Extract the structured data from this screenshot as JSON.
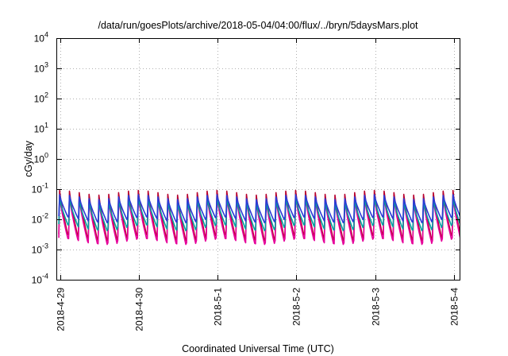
{
  "chart_data": {
    "type": "line",
    "title": "/data/run/goesPlots/archive/2018-05-04/04:00/flux/../bryn/5daysMars.plot",
    "xlabel": "Coordinated Universal Time (UTC)",
    "ylabel": "cGy/day",
    "y_scale": "log",
    "ylim": [
      0.0001,
      10000
    ],
    "y_ticks": [
      {
        "base": "10",
        "exp": "-4",
        "value": 0.0001
      },
      {
        "base": "10",
        "exp": "-3",
        "value": 0.001
      },
      {
        "base": "10",
        "exp": "-2",
        "value": 0.01
      },
      {
        "base": "10",
        "exp": "-1",
        "value": 0.1
      },
      {
        "base": "10",
        "exp": "0",
        "value": 1
      },
      {
        "base": "10",
        "exp": "1",
        "value": 10
      },
      {
        "base": "10",
        "exp": "2",
        "value": 100
      },
      {
        "base": "10",
        "exp": "3",
        "value": 1000
      },
      {
        "base": "10",
        "exp": "4",
        "value": 10000
      }
    ],
    "xlim": [
      "2018-04-28T23:00",
      "2018-05-04T02:00"
    ],
    "x_ticks": [
      "2018-4-29",
      "2018-4-30",
      "2018-5-1",
      "2018-5-2",
      "2018-5-3",
      "2018-5-4"
    ],
    "grid": true,
    "legend": "none",
    "sawtooth_period_hours": 3,
    "series": [
      {
        "color": "#b8002e",
        "values": {
          "peak": 0.09,
          "trough": 0.0028
        }
      },
      {
        "color": "#e6009a",
        "values": {
          "peak": 0.06,
          "trough": 0.0021
        }
      },
      {
        "color": "#00a0a0",
        "values": {
          "peak": 0.05,
          "trough": 0.006
        }
      },
      {
        "color": "#2a3bd6",
        "values": {
          "peak": 0.065,
          "trough": 0.011
        }
      }
    ]
  }
}
